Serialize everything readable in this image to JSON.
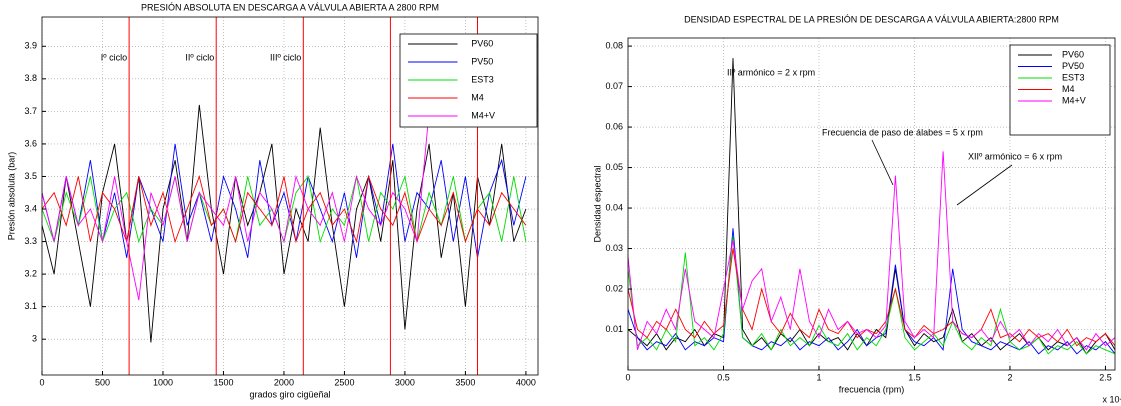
{
  "chart_data": [
    {
      "type": "line",
      "title": "PRESIÓN ABSOLUTA EN DESCARGA A VÁLVULA ABIERTA A 2800 RPM",
      "xlabel": "grados giro cigüeñal",
      "ylabel": "Presión absoluta (bar)",
      "xlim": [
        0,
        4100
      ],
      "ylim": [
        2.89,
        3.99
      ],
      "xticks": [
        0,
        500,
        1000,
        1500,
        2000,
        2500,
        3000,
        3500,
        4000
      ],
      "yticks": [
        3,
        3.1,
        3.2,
        3.3,
        3.4,
        3.5,
        3.6,
        3.7,
        3.8,
        3.9
      ],
      "grid": true,
      "legend": "upper right",
      "cycle_lines": [
        720,
        1440,
        2160,
        2880,
        3600
      ],
      "cycle_color": "#ff0000",
      "cycle_labels": [
        "Iº ciclo",
        "IIº ciclo",
        "IIIº ciclo"
      ],
      "x": [
        0,
        100,
        200,
        300,
        400,
        500,
        600,
        700,
        800,
        900,
        1000,
        1100,
        1200,
        1300,
        1400,
        1500,
        1600,
        1700,
        1800,
        1900,
        2000,
        2100,
        2200,
        2300,
        2400,
        2500,
        2600,
        2700,
        2800,
        2900,
        3000,
        3100,
        3200,
        3300,
        3400,
        3500,
        3600,
        3700,
        3800,
        3900,
        4000
      ],
      "series": [
        {
          "name": "PV60",
          "color": "#000000",
          "values": [
            3.35,
            3.2,
            3.5,
            3.3,
            3.1,
            3.45,
            3.6,
            3.3,
            3.5,
            2.99,
            3.4,
            3.55,
            3.3,
            3.72,
            3.4,
            3.2,
            3.5,
            3.35,
            3.45,
            3.6,
            3.2,
            3.4,
            3.3,
            3.65,
            3.35,
            3.1,
            3.4,
            3.5,
            3.3,
            3.55,
            3.03,
            3.4,
            3.6,
            3.25,
            3.45,
            3.1,
            3.5,
            3.35,
            3.6,
            3.3,
            3.4
          ]
        },
        {
          "name": "PV50",
          "color": "#0000ff",
          "values": [
            3.45,
            3.3,
            3.5,
            3.35,
            3.55,
            3.3,
            3.45,
            3.25,
            3.5,
            3.4,
            3.3,
            3.6,
            3.35,
            3.45,
            3.3,
            3.5,
            3.4,
            3.25,
            3.55,
            3.35,
            3.45,
            3.3,
            3.5,
            3.4,
            3.3,
            3.45,
            3.25,
            3.5,
            3.35,
            3.6,
            3.3,
            3.45,
            3.4,
            3.55,
            3.3,
            3.5,
            3.25,
            3.45,
            3.55,
            3.35,
            3.5
          ]
        },
        {
          "name": "EST3",
          "color": "#00dd00",
          "values": [
            3.4,
            3.3,
            3.45,
            3.35,
            3.5,
            3.3,
            3.4,
            3.45,
            3.3,
            3.4,
            3.35,
            3.5,
            3.3,
            3.45,
            3.35,
            3.4,
            3.3,
            3.5,
            3.35,
            3.4,
            3.3,
            3.45,
            3.5,
            3.3,
            3.4,
            3.35,
            3.5,
            3.3,
            3.45,
            3.4,
            3.5,
            3.3,
            3.45,
            3.35,
            3.5,
            3.3,
            3.4,
            3.45,
            3.3,
            3.5,
            3.3
          ]
        },
        {
          "name": "M4",
          "color": "#ff0000",
          "values": [
            3.4,
            3.45,
            3.35,
            3.5,
            3.3,
            3.45,
            3.4,
            3.3,
            3.5,
            3.35,
            3.45,
            3.3,
            3.4,
            3.5,
            3.35,
            3.4,
            3.3,
            3.45,
            3.4,
            3.35,
            3.5,
            3.3,
            3.4,
            3.45,
            3.35,
            3.4,
            3.3,
            3.5,
            3.4,
            3.35,
            3.45,
            3.3,
            3.4,
            3.35,
            3.45,
            3.3,
            3.4,
            3.35,
            3.45,
            3.4,
            3.35
          ]
        },
        {
          "name": "M4+V",
          "color": "#ff00ff",
          "values": [
            3.45,
            3.3,
            3.5,
            3.35,
            3.4,
            3.3,
            3.5,
            3.3,
            3.12,
            3.45,
            3.35,
            3.5,
            3.3,
            3.45,
            3.4,
            3.35,
            3.5,
            3.3,
            3.45,
            3.4,
            3.3,
            3.5,
            3.4,
            3.35,
            3.45,
            3.3,
            3.5,
            3.4,
            3.35,
            3.45,
            3.4,
            3.3,
            3.7,
            null,
            null,
            null,
            null,
            null,
            null,
            null,
            null
          ]
        }
      ]
    },
    {
      "type": "line",
      "title": "DENSIDAD ESPECTRAL DE LA PRESIÓN DE DESCARGA A VÁLVULA ABIERTA:2800 RPM",
      "xlabel": "frecuencia (rpm)",
      "ylabel": "Densidad espectral",
      "x_scale_label": "x 10⁴",
      "xlim": [
        0,
        2.55
      ],
      "ylim": [
        0,
        0.082
      ],
      "xticks": [
        0,
        0.5,
        1,
        1.5,
        2,
        2.5
      ],
      "yticks": [
        0.01,
        0.02,
        0.03,
        0.04,
        0.05,
        0.06,
        0.07,
        0.08
      ],
      "grid": true,
      "legend": "upper right",
      "annotations": [
        "IIº armónico = 2 x rpm",
        "Frecuencia de paso de álabes = 5 x rpm",
        "XIIº armónico = 6 x rpm"
      ],
      "x": [
        0,
        0.05,
        0.1,
        0.15,
        0.2,
        0.25,
        0.3,
        0.35,
        0.4,
        0.45,
        0.5,
        0.55,
        0.6,
        0.65,
        0.7,
        0.75,
        0.8,
        0.85,
        0.9,
        0.95,
        1,
        1.05,
        1.1,
        1.15,
        1.2,
        1.25,
        1.3,
        1.35,
        1.4,
        1.45,
        1.5,
        1.55,
        1.6,
        1.65,
        1.7,
        1.75,
        1.8,
        1.85,
        1.9,
        1.95,
        2,
        2.05,
        2.1,
        2.15,
        2.2,
        2.25,
        2.3,
        2.35,
        2.4,
        2.45,
        2.5,
        2.55
      ],
      "series": [
        {
          "name": "PV60",
          "color": "#000000",
          "values": [
            0.01,
            0.008,
            0.006,
            0.009,
            0.005,
            0.008,
            0.007,
            0.01,
            0.006,
            0.009,
            0.008,
            0.077,
            0.01,
            0.006,
            0.008,
            0.005,
            0.009,
            0.007,
            0.01,
            0.006,
            0.009,
            0.007,
            0.008,
            0.005,
            0.009,
            0.006,
            0.01,
            0.008,
            0.025,
            0.01,
            0.006,
            0.009,
            0.007,
            0.008,
            0.015,
            0.007,
            0.009,
            0.006,
            0.008,
            0.005,
            0.007,
            0.009,
            0.006,
            0.008,
            0.005,
            0.007,
            0.006,
            0.008,
            0.004,
            0.007,
            0.009,
            0.005
          ]
        },
        {
          "name": "PV50",
          "color": "#0000ff",
          "values": [
            0.015,
            0.008,
            0.005,
            0.007,
            0.006,
            0.009,
            0.005,
            0.007,
            0.006,
            0.008,
            0.007,
            0.035,
            0.008,
            0.006,
            0.005,
            0.007,
            0.006,
            0.008,
            0.005,
            0.007,
            0.006,
            0.008,
            0.005,
            0.007,
            0.01,
            0.006,
            0.008,
            0.009,
            0.026,
            0.01,
            0.007,
            0.006,
            0.008,
            0.005,
            0.025,
            0.01,
            0.007,
            0.006,
            0.005,
            0.007,
            0.006,
            0.005,
            0.007,
            0.004,
            0.006,
            0.005,
            0.007,
            0.004,
            0.006,
            0.005,
            0.007,
            0.004
          ]
        },
        {
          "name": "EST3",
          "color": "#00dd00",
          "values": [
            0.025,
            0.006,
            0.008,
            0.005,
            0.01,
            0.007,
            0.029,
            0.006,
            0.008,
            0.005,
            0.009,
            0.033,
            0.008,
            0.006,
            0.009,
            0.005,
            0.01,
            0.006,
            0.008,
            0.006,
            0.011,
            0.007,
            0.006,
            0.009,
            0.005,
            0.008,
            0.006,
            0.01,
            0.02,
            0.008,
            0.005,
            0.007,
            0.009,
            0.006,
            0.012,
            0.007,
            0.005,
            0.008,
            0.006,
            0.015,
            0.007,
            0.005,
            0.006,
            0.008,
            0.004,
            0.006,
            0.005,
            0.007,
            0.004,
            0.006,
            0.005,
            0.004
          ]
        },
        {
          "name": "M4",
          "color": "#ff0000",
          "values": [
            0.02,
            0.01,
            0.008,
            0.012,
            0.01,
            0.015,
            0.01,
            0.008,
            0.012,
            0.009,
            0.011,
            0.03,
            0.015,
            0.01,
            0.02,
            0.012,
            0.009,
            0.014,
            0.01,
            0.008,
            0.015,
            0.01,
            0.009,
            0.012,
            0.008,
            0.01,
            0.009,
            0.012,
            0.02,
            0.01,
            0.008,
            0.011,
            0.009,
            0.01,
            0.012,
            0.009,
            0.008,
            0.01,
            0.015,
            0.008,
            0.009,
            0.007,
            0.01,
            0.008,
            0.009,
            0.007,
            0.01,
            0.006,
            0.008,
            0.007,
            0.009,
            0.006
          ]
        },
        {
          "name": "M4+V",
          "color": "#ff00ff",
          "values": [
            0.028,
            0.005,
            0.012,
            0.009,
            0.015,
            0.01,
            0.025,
            0.012,
            0.01,
            0.008,
            0.02,
            0.032,
            0.015,
            0.022,
            0.025,
            0.012,
            0.018,
            0.01,
            0.025,
            0.012,
            0.008,
            0.015,
            0.01,
            0.012,
            0.009,
            0.01,
            0.008,
            0.011,
            0.048,
            0.012,
            0.008,
            0.01,
            0.008,
            0.054,
            0.012,
            0.009,
            0.008,
            0.01,
            0.007,
            0.012,
            0.008,
            0.01,
            0.006,
            0.009,
            0.007,
            0.01,
            0.006,
            0.008,
            0.005,
            0.009,
            0.006,
            0.008
          ]
        }
      ]
    }
  ]
}
